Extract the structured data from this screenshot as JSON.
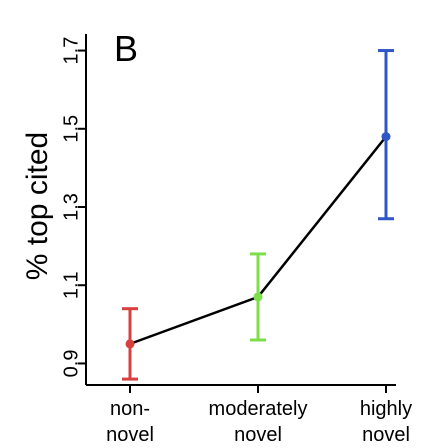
{
  "chart_data": {
    "type": "line",
    "panel_label": "B",
    "ylabel": "% top cited",
    "xlabel": "",
    "ylim": [
      0.85,
      1.75
    ],
    "y_ticks": [
      "0.9",
      "1.1",
      "1.3",
      "1.5",
      "1.7"
    ],
    "y_tick_values": [
      0.9,
      1.1,
      1.3,
      1.5,
      1.7
    ],
    "categories": [
      {
        "line1": "non-",
        "line2": "novel"
      },
      {
        "line1": "moderately",
        "line2": "novel"
      },
      {
        "line1": "highly",
        "line2": "novel"
      }
    ],
    "points": [
      {
        "mean": 0.95,
        "lower": 0.86,
        "upper": 1.04,
        "color": "#d84040"
      },
      {
        "mean": 1.07,
        "lower": 0.96,
        "upper": 1.18,
        "color": "#7cdf4a"
      },
      {
        "mean": 1.48,
        "lower": 1.27,
        "upper": 1.7,
        "color": "#2e56c7"
      }
    ],
    "line_color": "#000000",
    "grid": false
  }
}
